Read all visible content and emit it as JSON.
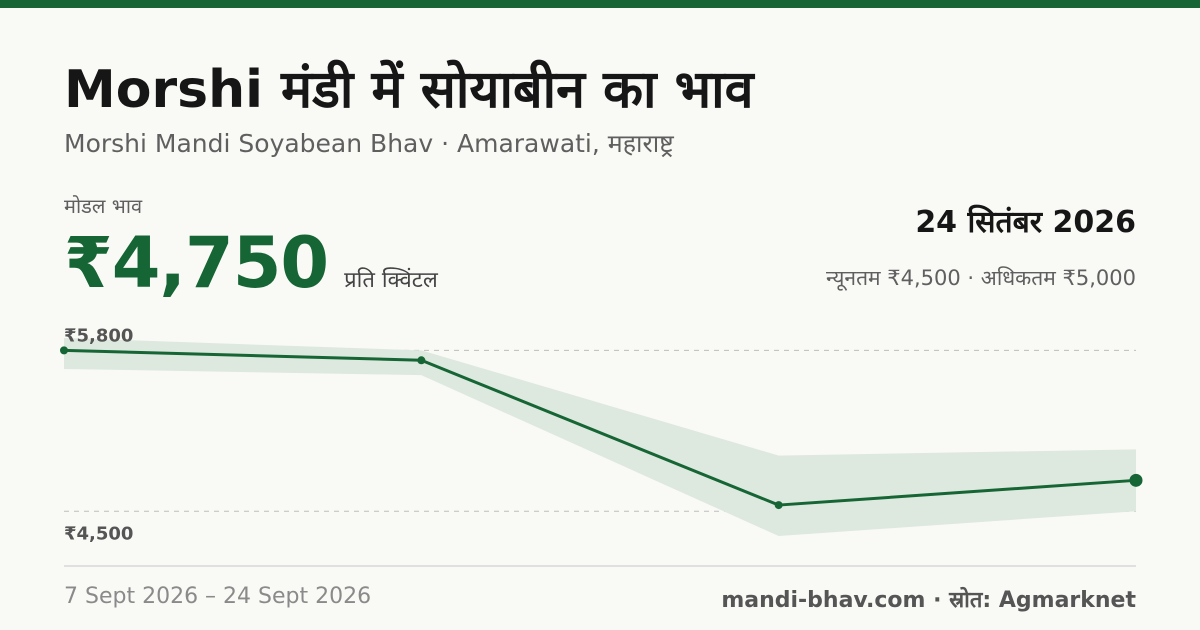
{
  "header": {
    "title": "Morshi मंडी में सोयाबीन का भाव",
    "subtitle": "Morshi Mandi Soyabean Bhav · Amarawati, महाराष्ट्र"
  },
  "price": {
    "label": "मोडल भाव",
    "value": "₹4,750",
    "unit": "प्रति क्विंटल"
  },
  "date": "24 सितंबर 2026",
  "range_text": "न्यूनतम ₹4,500 · अधिकतम ₹5,000",
  "footer": {
    "date_range": "7 Sept 2026 – 24 Sept 2026",
    "source": "mandi-bhav.com · स्रोत: Agmarknet"
  },
  "colors": {
    "accent": "#166534",
    "band": "#dde8df",
    "gridline": "#bdbdbd"
  },
  "chart_data": {
    "type": "line",
    "series": [
      {
        "values": [
          5800,
          5720,
          4550,
          4750
        ]
      },
      {
        "band_min": [
          5650,
          5600,
          4300,
          4500
        ],
        "band_max": [
          5900,
          5800,
          4950,
          5000
        ]
      }
    ],
    "ylim": [
      4300,
      5900
    ],
    "ytick_labels": [
      {
        "value": 5800,
        "label": "₹5,800"
      },
      {
        "value": 4500,
        "label": "₹4,500"
      }
    ],
    "grid": true
  }
}
